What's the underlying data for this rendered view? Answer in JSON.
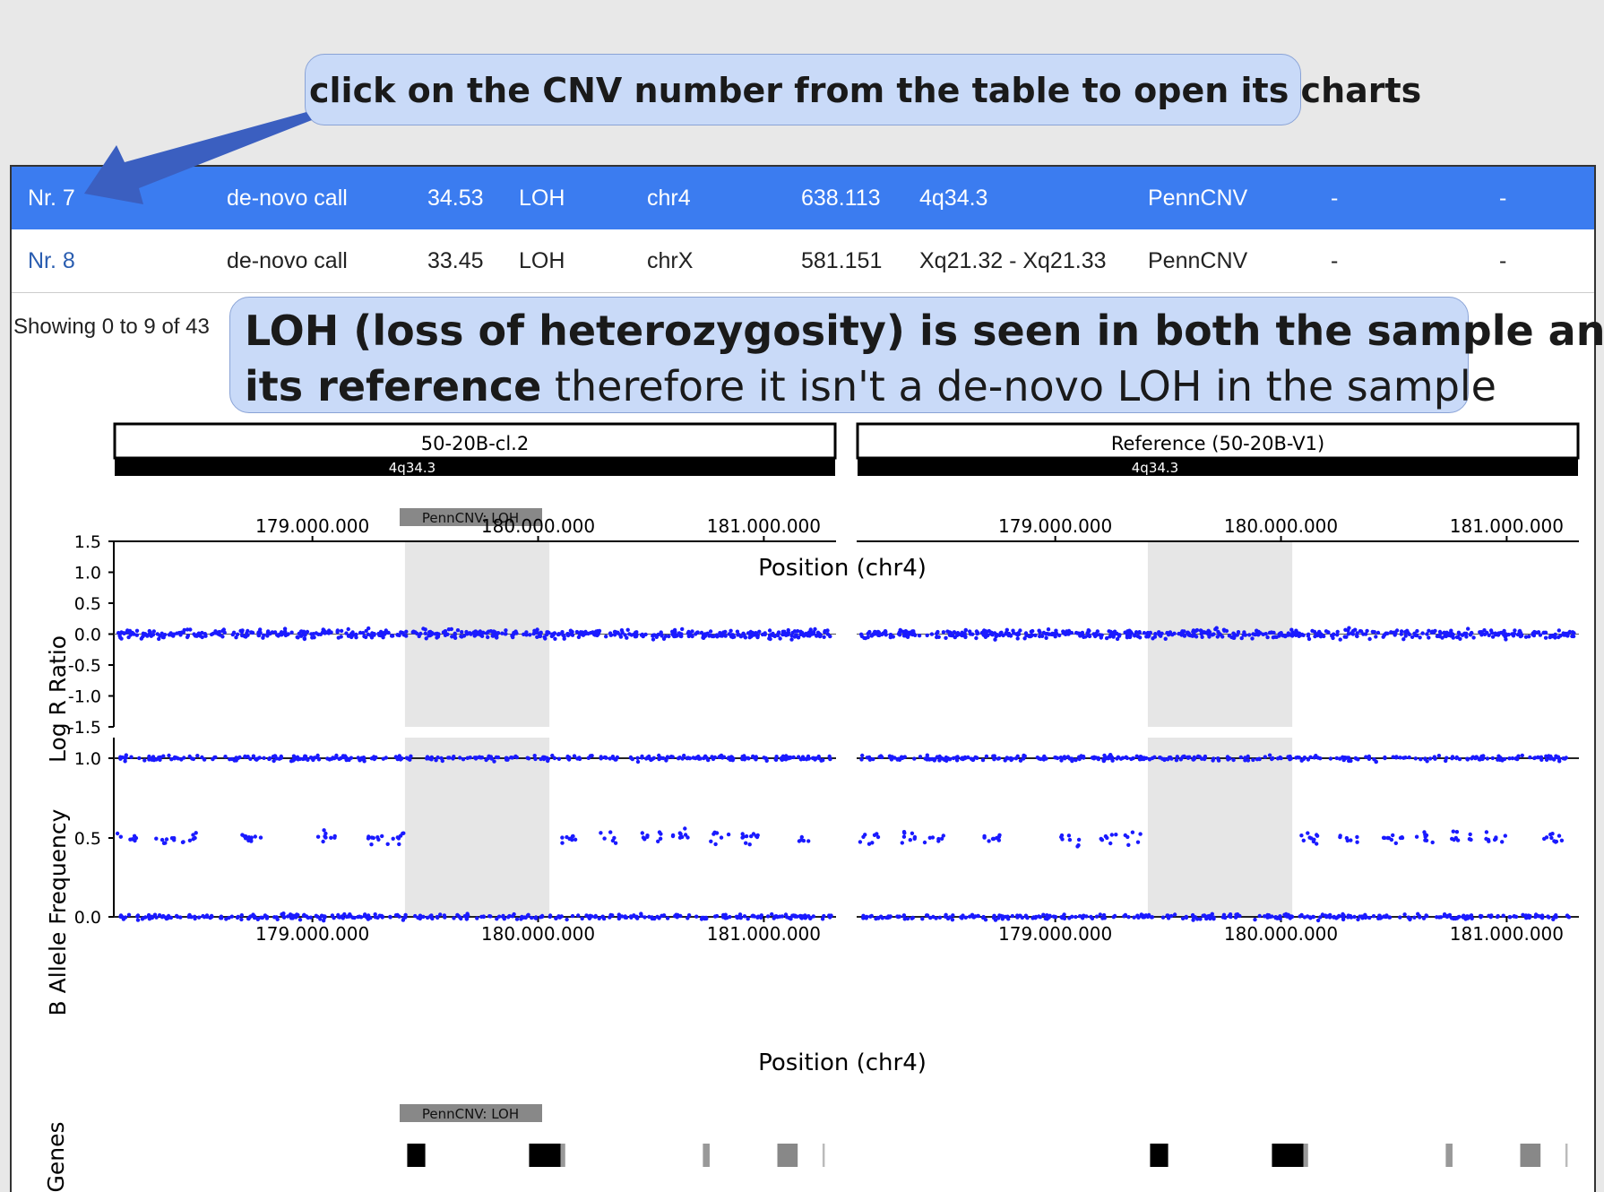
{
  "callouts": {
    "top": "click on the CNV number from the table to open its charts",
    "middle_bold_line1": "LOH (loss of heterozygosity) is seen in both the sample and",
    "middle_bold_line2": "its reference",
    "middle_regular": " therefore it isn't a de-novo LOH in the sample"
  },
  "table": {
    "rows": [
      {
        "nr": "Nr. 7",
        "type": "de-novo call",
        "score": "34.53",
        "cnv": "LOH",
        "chr": "chr4",
        "size": "638.113",
        "band": "4q34.3",
        "caller": "PennCNV",
        "c1": "-",
        "c2": "-"
      },
      {
        "nr": "Nr. 8",
        "type": "de-novo call",
        "score": "33.45",
        "cnv": "LOH",
        "chr": "chrX",
        "size": "581.151",
        "band": "Xq21.32 - Xq21.33",
        "caller": "PennCNV",
        "c1": "-",
        "c2": "-"
      }
    ],
    "showing": "Showing 0 to 9 of 43"
  },
  "panels": {
    "left_title": "50-20B-cl.2",
    "right_title": "Reference (50-20B-V1)",
    "band": "4q34.3",
    "call_label": "PennCNV: LOH",
    "position_label": "Position (chr4)",
    "genes_label": "Genes"
  },
  "chart_data": [
    {
      "type": "scatter",
      "panel": "50-20B-cl.2",
      "xlabel": "Position (chr4)",
      "x_ticks": [
        "179.000.000",
        "180.000.000",
        "181.000.000"
      ],
      "xlim": [
        178120000,
        181320000
      ],
      "tracks": [
        {
          "ylabel": "Log R Ratio",
          "ylim": [
            -1.5,
            1.5
          ],
          "yticks": [
            "1.5",
            "1.0",
            "0.5",
            "0.0",
            "-0.5",
            "-1.0",
            "-1.5"
          ],
          "baseline": 0.0
        },
        {
          "ylabel": "B Allele Frequency",
          "ylim": [
            -0.1,
            1.1
          ],
          "yticks": [
            "1.0",
            "0.5",
            "0.0"
          ],
          "bands": [
            1.0,
            0.5,
            0.0
          ]
        }
      ],
      "highlight_region": [
        179410000,
        180050000
      ],
      "series_color": "#1a1aff"
    },
    {
      "type": "scatter",
      "panel": "Reference (50-20B-V1)",
      "xlabel": "Position (chr4)",
      "x_ticks": [
        "179.000.000",
        "180.000.000",
        "181.000.000"
      ],
      "xlim": [
        178120000,
        181320000
      ],
      "tracks": [
        {
          "ylabel": "Log R Ratio",
          "ylim": [
            -1.5,
            1.5
          ],
          "baseline": 0.0
        },
        {
          "ylabel": "B Allele Frequency",
          "ylim": [
            -0.1,
            1.1
          ],
          "bands": [
            1.0,
            0.5,
            0.0
          ]
        }
      ],
      "highlight_region": [
        179410000,
        180050000
      ],
      "series_color": "#1a1aff"
    }
  ]
}
